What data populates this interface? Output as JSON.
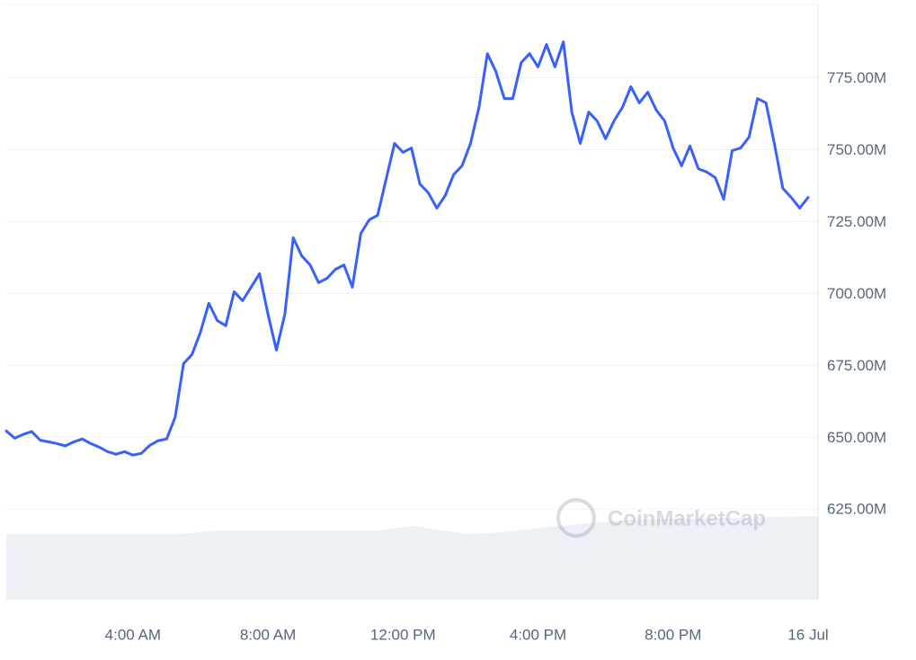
{
  "chart_data": {
    "type": "line",
    "watermark": "CoinMarketCap",
    "categories": [
      null,
      null,
      null,
      null,
      null,
      null,
      null,
      null,
      null,
      null,
      null,
      null,
      null,
      null,
      null,
      "4:00 AM",
      null,
      null,
      null,
      null,
      null,
      null,
      null,
      null,
      null,
      null,
      null,
      null,
      null,
      null,
      null,
      "8:00 AM",
      null,
      null,
      null,
      null,
      null,
      null,
      null,
      null,
      null,
      null,
      null,
      null,
      null,
      null,
      null,
      "12:00 PM",
      null,
      null,
      null,
      null,
      null,
      null,
      null,
      null,
      null,
      null,
      null,
      null,
      null,
      null,
      null,
      "4:00 PM",
      null,
      null,
      null,
      null,
      null,
      null,
      null,
      null,
      null,
      null,
      null,
      null,
      null,
      null,
      null,
      "8:00 PM",
      null,
      null,
      null,
      null,
      null,
      null,
      null,
      null,
      null,
      null,
      null,
      null,
      null,
      null,
      null,
      "16 Jul"
    ],
    "series": [
      {
        "color": "#3861fb",
        "values": [
          652.2,
          649.7,
          651,
          652,
          649,
          648.4,
          647.8,
          647,
          648.4,
          649.4,
          647.8,
          646.6,
          645,
          644.1,
          645,
          643.8,
          644.4,
          647.2,
          648.8,
          649.4,
          656.9,
          675.6,
          678.8,
          686.6,
          696.6,
          690.6,
          688.8,
          700.6,
          697.5,
          702.2,
          706.9,
          692.8,
          680.3,
          692.8,
          719.4,
          713.1,
          709.9,
          703.8,
          705.3,
          708.4,
          709.9,
          702.2,
          720.9,
          725.6,
          727.2,
          739.7,
          752.2,
          749.1,
          750.6,
          738.1,
          735,
          729.7,
          734.1,
          741.3,
          744.4,
          752.2,
          764.7,
          783.4,
          777.2,
          767.8,
          767.8,
          780.3,
          783.4,
          778.8,
          786.6,
          778.8,
          787.5,
          763.1,
          752.2,
          763.1,
          760,
          753.8,
          760,
          764.7,
          771.9,
          766.3,
          770,
          763.8,
          760,
          750.6,
          744.4,
          751.3,
          743.4,
          742.2,
          740.3,
          732.8,
          749.7,
          750.6,
          754.4,
          767.8,
          766.3,
          752.2,
          736.6,
          733.4,
          729.7,
          733.4
        ]
      }
    ],
    "ylim": [
      593.5,
      800.5
    ],
    "yticks": [
      {
        "value": 625,
        "label": "625.00M"
      },
      {
        "value": 650,
        "label": "650.00M"
      },
      {
        "value": 675,
        "label": "675.00M"
      },
      {
        "value": 700,
        "label": "700.00M"
      },
      {
        "value": 725,
        "label": "725.00M"
      },
      {
        "value": 750,
        "label": "750.00M"
      },
      {
        "value": 775,
        "label": "775.00M"
      }
    ],
    "grid": true
  }
}
